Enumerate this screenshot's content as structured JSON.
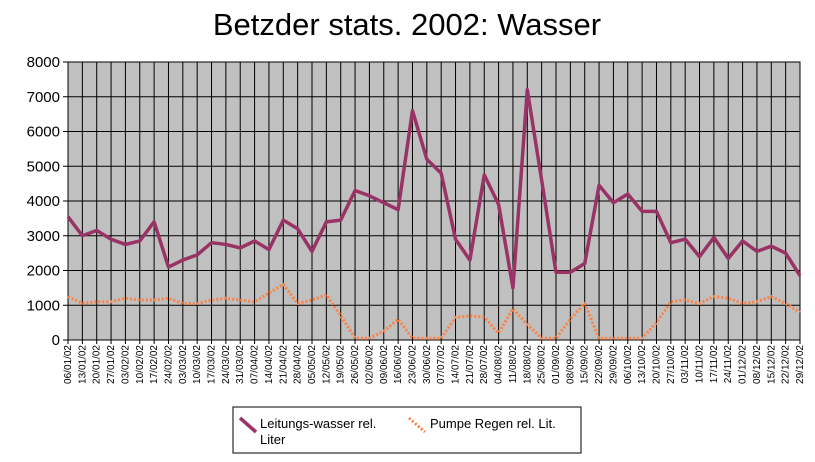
{
  "chart_data": {
    "type": "line",
    "title": "Betzder stats. 2002: Wasser",
    "xlabel": "",
    "ylabel": "",
    "ylim": [
      0,
      8000
    ],
    "yticks": [
      0,
      1000,
      2000,
      3000,
      4000,
      5000,
      6000,
      7000,
      8000
    ],
    "grid": true,
    "legend_position": "bottom",
    "categories": [
      "06/01/02",
      "13/01/02",
      "20/01/02",
      "27/01/02",
      "03/02/02",
      "10/02/02",
      "17/02/02",
      "24/02/02",
      "03/03/02",
      "10/03/02",
      "17/03/02",
      "24/03/02",
      "31/03/02",
      "07/04/02",
      "14/04/02",
      "21/04/02",
      "28/04/02",
      "05/05/02",
      "12/05/02",
      "19/05/02",
      "26/05/02",
      "02/06/02",
      "09/06/02",
      "16/06/02",
      "23/06/02",
      "30/06/02",
      "07/07/02",
      "14/07/02",
      "21/07/02",
      "28/07/02",
      "04/08/02",
      "11/08/02",
      "18/08/02",
      "25/08/02",
      "01/09/02",
      "08/09/02",
      "15/09/02",
      "22/09/02",
      "29/09/02",
      "06/10/02",
      "13/10/02",
      "20/10/02",
      "27/10/02",
      "03/11/02",
      "10/11/02",
      "17/11/02",
      "24/11/02",
      "01/12/02",
      "08/12/02",
      "15/12/02",
      "22/12/02",
      "29/12/02"
    ],
    "series": [
      {
        "name": "Leitungs-wasser rel. Liter",
        "color": "#993366",
        "style": "solid",
        "values": [
          3550,
          3000,
          3150,
          2900,
          2750,
          2850,
          3400,
          2100,
          2300,
          2450,
          2800,
          2750,
          2650,
          2850,
          2600,
          3450,
          3200,
          2550,
          3400,
          3450,
          4300,
          4150,
          3950,
          3750,
          6600,
          5200,
          4800,
          2900,
          2300,
          4750,
          3900,
          1500,
          7200,
          4600,
          1950,
          1950,
          2200,
          4450,
          3950,
          4200,
          3700,
          3700,
          2800,
          2900,
          2400,
          2950,
          2350,
          2850,
          2550,
          2700,
          2500,
          1850
        ]
      },
      {
        "name": "Pumpe Regen rel. Lit.",
        "color": "#ff8040",
        "style": "dotted",
        "values": [
          1250,
          1050,
          1100,
          1100,
          1200,
          1150,
          1150,
          1200,
          1050,
          1050,
          1150,
          1200,
          1150,
          1100,
          1350,
          1600,
          1050,
          1150,
          1300,
          700,
          50,
          50,
          250,
          600,
          50,
          50,
          50,
          650,
          700,
          650,
          200,
          900,
          450,
          50,
          50,
          600,
          1050,
          50,
          50,
          50,
          50,
          500,
          1100,
          1150,
          1050,
          1250,
          1200,
          1050,
          1100,
          1250,
          1050,
          800
        ]
      }
    ]
  }
}
